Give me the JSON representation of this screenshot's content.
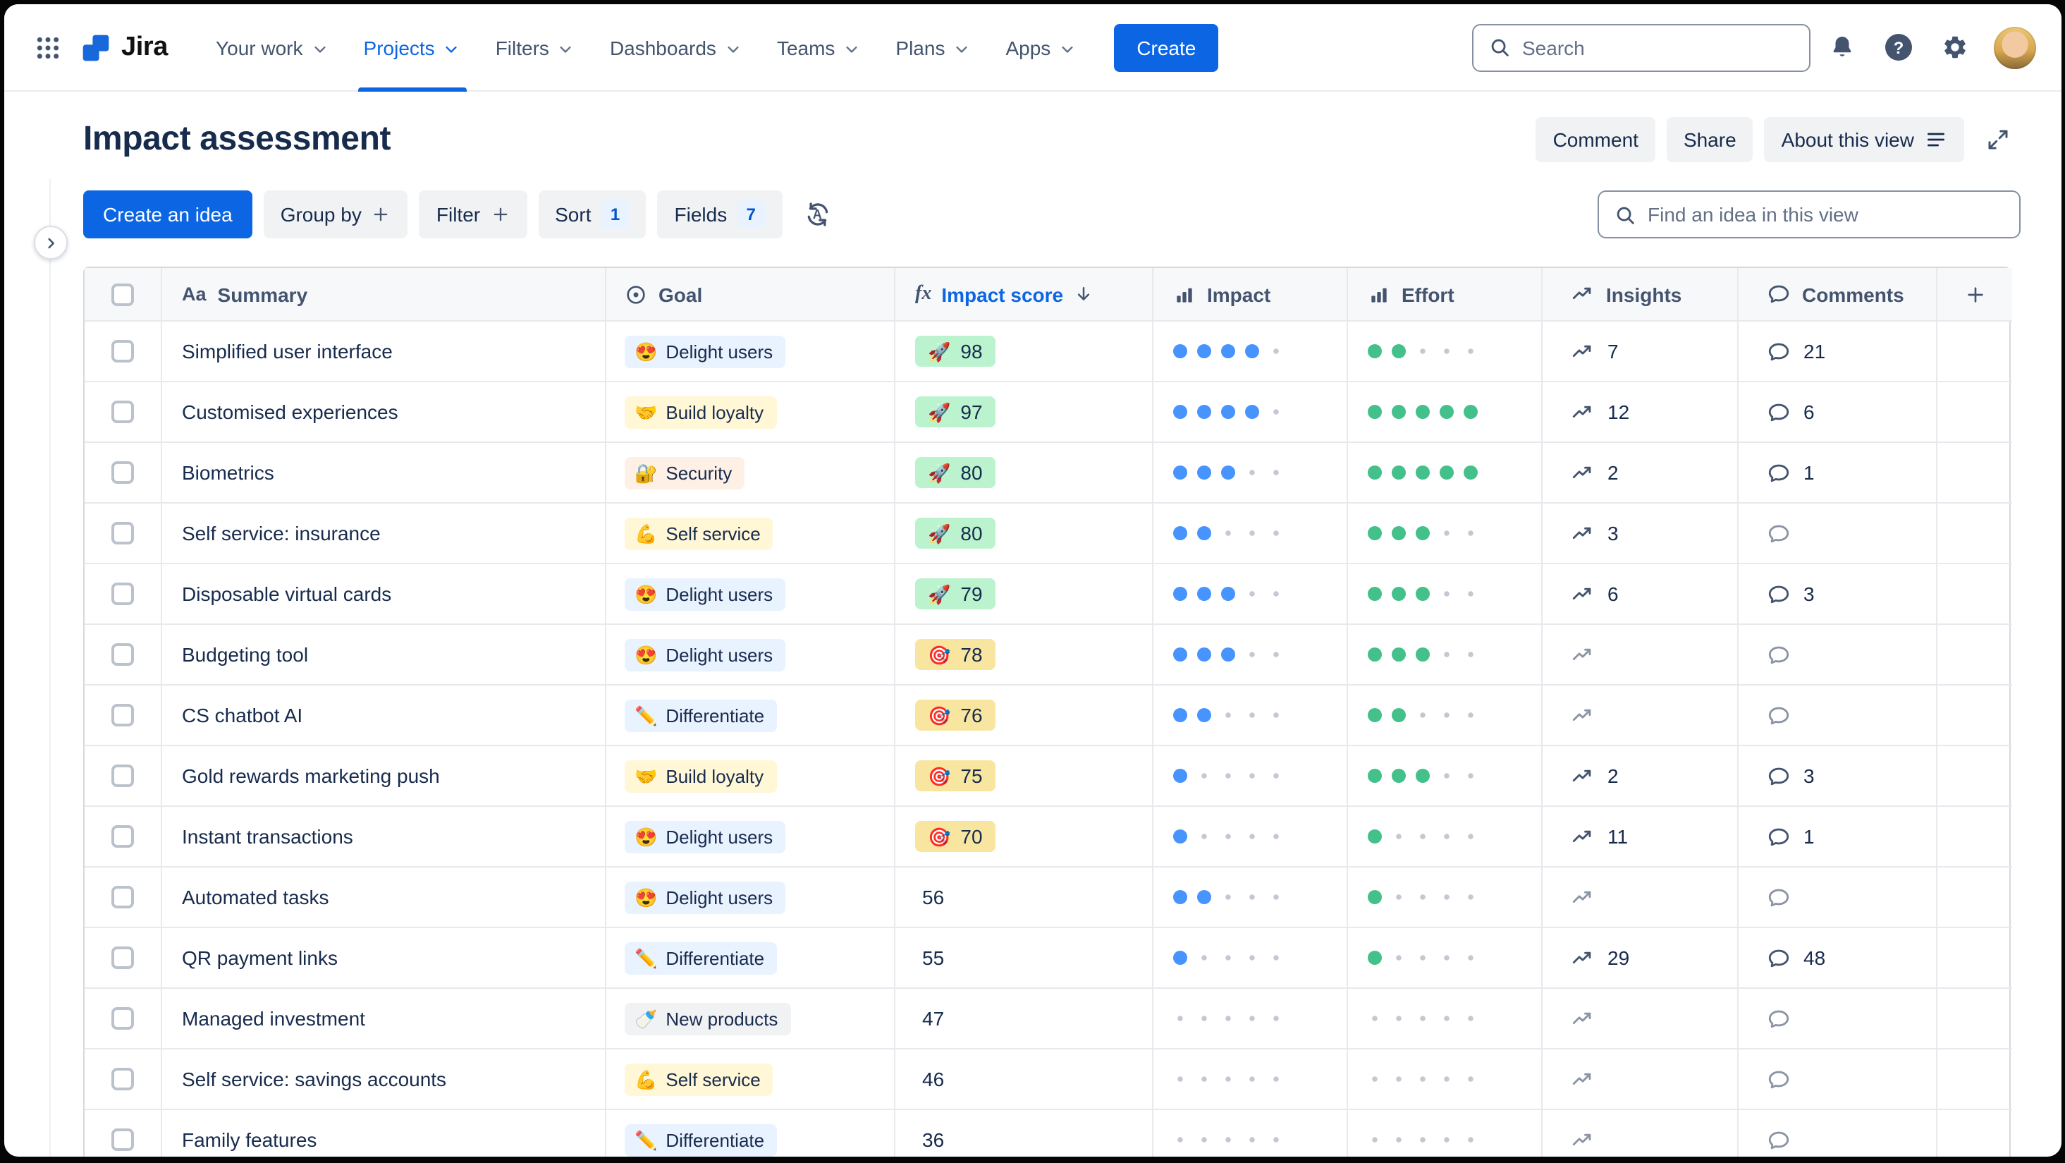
{
  "colors": {
    "accent": "#0C66E4",
    "impact_dot": "#4794FF",
    "effort_dot": "#44C08A",
    "score_green_bg": "#BAF3CE",
    "score_yellow_bg": "#F8E6A0"
  },
  "nav": {
    "app_name": "Jira",
    "items": [
      {
        "label": "Your work"
      },
      {
        "label": "Projects",
        "active": true
      },
      {
        "label": "Filters"
      },
      {
        "label": "Dashboards"
      },
      {
        "label": "Teams"
      },
      {
        "label": "Plans"
      },
      {
        "label": "Apps"
      }
    ],
    "create_label": "Create",
    "search_placeholder": "Search",
    "help_glyph": "?"
  },
  "header": {
    "title": "Impact assessment",
    "comment_label": "Comment",
    "share_label": "Share",
    "about_label": "About this view"
  },
  "toolbar": {
    "create_idea_label": "Create an idea",
    "group_by_label": "Group by",
    "filter_label": "Filter",
    "sort_label": "Sort",
    "sort_count": "1",
    "fields_label": "Fields",
    "fields_count": "7",
    "sort_cycle_letter": "A",
    "find_placeholder": "Find an idea in this view"
  },
  "table": {
    "columns": {
      "summary": "Summary",
      "goal": "Goal",
      "impact_score": "Impact score",
      "impact": "Impact",
      "effort": "Effort",
      "insights": "Insights",
      "comments": "Comments"
    },
    "icon_glyphs": {
      "summary": "Aa",
      "impact_score": "fx"
    },
    "rows": [
      {
        "summary": "Simplified user interface",
        "goal": {
          "emoji": "😍",
          "label": "Delight users",
          "bg": "#E9F2FF"
        },
        "score": {
          "value": "98",
          "tier": "green",
          "emoji": "🚀"
        },
        "impact": 4,
        "effort": 2,
        "insights": "7",
        "comments": "21"
      },
      {
        "summary": "Customised experiences",
        "goal": {
          "emoji": "🤝",
          "label": "Build loyalty",
          "bg": "#FFF7D6"
        },
        "score": {
          "value": "97",
          "tier": "green",
          "emoji": "🚀"
        },
        "impact": 4,
        "effort": 5,
        "insights": "12",
        "comments": "6"
      },
      {
        "summary": "Biometrics",
        "goal": {
          "emoji": "🔐",
          "label": "Security",
          "bg": "#FFF0E6"
        },
        "score": {
          "value": "80",
          "tier": "green",
          "emoji": "🚀"
        },
        "impact": 3,
        "effort": 5,
        "insights": "2",
        "comments": "1"
      },
      {
        "summary": "Self service: insurance",
        "goal": {
          "emoji": "💪",
          "label": "Self service",
          "bg": "#FFF7D6"
        },
        "score": {
          "value": "80",
          "tier": "green",
          "emoji": "🚀"
        },
        "impact": 2,
        "effort": 3,
        "insights": "3",
        "comments": null
      },
      {
        "summary": "Disposable virtual cards",
        "goal": {
          "emoji": "😍",
          "label": "Delight users",
          "bg": "#E9F2FF"
        },
        "score": {
          "value": "79",
          "tier": "green",
          "emoji": "🚀"
        },
        "impact": 3,
        "effort": 3,
        "insights": "6",
        "comments": "3"
      },
      {
        "summary": "Budgeting tool",
        "goal": {
          "emoji": "😍",
          "label": "Delight users",
          "bg": "#E9F2FF"
        },
        "score": {
          "value": "78",
          "tier": "yellow",
          "emoji": "🎯"
        },
        "impact": 3,
        "effort": 3,
        "insights": null,
        "comments": null
      },
      {
        "summary": "CS chatbot AI",
        "goal": {
          "emoji": "✏️",
          "label": "Differentiate",
          "bg": "#E9F2FF"
        },
        "score": {
          "value": "76",
          "tier": "yellow",
          "emoji": "🎯"
        },
        "impact": 2,
        "effort": 2,
        "insights": null,
        "comments": null
      },
      {
        "summary": "Gold rewards marketing push",
        "goal": {
          "emoji": "🤝",
          "label": "Build loyalty",
          "bg": "#FFF7D6"
        },
        "score": {
          "value": "75",
          "tier": "yellow",
          "emoji": "🎯"
        },
        "impact": 1,
        "effort": 3,
        "insights": "2",
        "comments": "3"
      },
      {
        "summary": "Instant transactions",
        "goal": {
          "emoji": "😍",
          "label": "Delight users",
          "bg": "#E9F2FF"
        },
        "score": {
          "value": "70",
          "tier": "yellow",
          "emoji": "🎯"
        },
        "impact": 1,
        "effort": 1,
        "insights": "11",
        "comments": "1"
      },
      {
        "summary": "Automated tasks",
        "goal": {
          "emoji": "😍",
          "label": "Delight users",
          "bg": "#E9F2FF"
        },
        "score": {
          "value": "56",
          "tier": "none",
          "emoji": ""
        },
        "impact": 2,
        "effort": 1,
        "insights": null,
        "comments": null
      },
      {
        "summary": "QR payment links",
        "goal": {
          "emoji": "✏️",
          "label": "Differentiate",
          "bg": "#E9F2FF"
        },
        "score": {
          "value": "55",
          "tier": "none",
          "emoji": ""
        },
        "impact": 1,
        "effort": 1,
        "insights": "29",
        "comments": "48"
      },
      {
        "summary": "Managed investment",
        "goal": {
          "emoji": "🍼",
          "label": "New products",
          "bg": "#F1F2F4"
        },
        "score": {
          "value": "47",
          "tier": "none",
          "emoji": ""
        },
        "impact": 0,
        "effort": 0,
        "insights": null,
        "comments": null
      },
      {
        "summary": "Self service: savings accounts",
        "goal": {
          "emoji": "💪",
          "label": "Self service",
          "bg": "#FFF7D6"
        },
        "score": {
          "value": "46",
          "tier": "none",
          "emoji": ""
        },
        "impact": 0,
        "effort": 0,
        "insights": null,
        "comments": null
      },
      {
        "summary": "Family features",
        "goal": {
          "emoji": "✏️",
          "label": "Differentiate",
          "bg": "#E9F2FF"
        },
        "score": {
          "value": "36",
          "tier": "none",
          "emoji": ""
        },
        "impact": 0,
        "effort": 0,
        "insights": null,
        "comments": null
      }
    ]
  }
}
